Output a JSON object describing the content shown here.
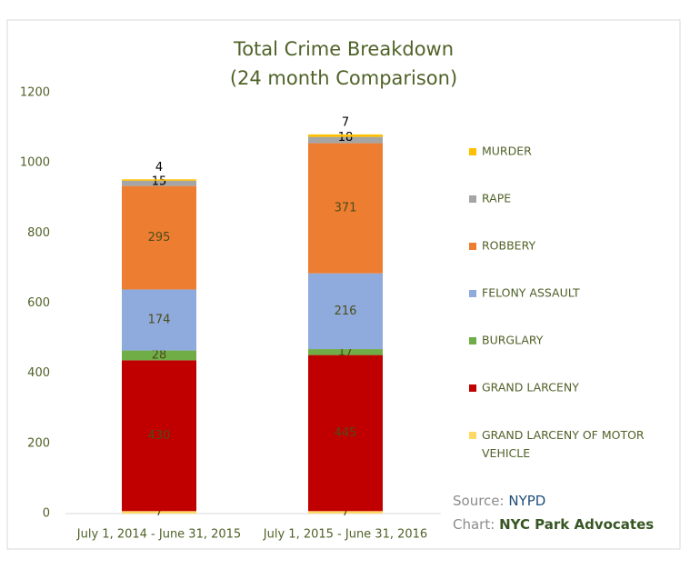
{
  "chart_data": {
    "type": "stacked-bar",
    "title": "Total Crime Breakdown",
    "subtitle": "(24 month Comparison)",
    "categories": [
      "July 1, 2014 - June 31, 2015",
      "July 1, 2015 - June 31, 2016"
    ],
    "series": [
      {
        "name": "GRAND LARCENY OF MOTOR VEHICLE",
        "color": "#ffd966",
        "values": [
          7,
          7
        ]
      },
      {
        "name": "GRAND LARCENY",
        "color": "#c00000",
        "values": [
          430,
          445
        ]
      },
      {
        "name": "BURGLARY",
        "color": "#70ad47",
        "values": [
          28,
          17
        ]
      },
      {
        "name": "FELONY ASSAULT",
        "color": "#8faadc",
        "values": [
          174,
          216
        ]
      },
      {
        "name": "ROBBERY",
        "color": "#ed7d31",
        "values": [
          295,
          371
        ]
      },
      {
        "name": "RAPE",
        "color": "#a5a5a5",
        "values": [
          15,
          18
        ]
      },
      {
        "name": "MURDER",
        "color": "#ffc000",
        "values": [
          4,
          7
        ]
      }
    ],
    "ylim": [
      0,
      1200
    ],
    "yticks": [
      0,
      200,
      400,
      600,
      800,
      1000,
      1200
    ],
    "legend": "right",
    "source": {
      "label": "Source:",
      "value": "NYPD"
    },
    "credit": {
      "label": "Chart:",
      "value": "NYC Park Advocates"
    }
  }
}
